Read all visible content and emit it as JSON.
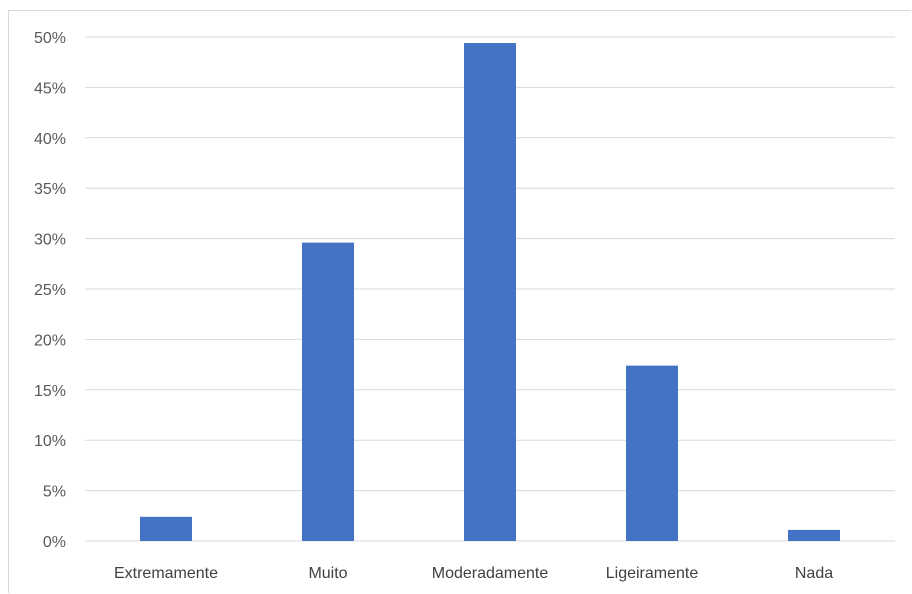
{
  "chart_data": {
    "type": "bar",
    "categories": [
      "Extremamente",
      "Muito",
      "Moderadamente",
      "Ligeiramente",
      "Nada"
    ],
    "values": [
      2.4,
      29.6,
      49.4,
      17.4,
      1.1
    ],
    "title": "",
    "xlabel": "",
    "ylabel": "",
    "ylim": [
      0,
      50
    ],
    "yticks": [
      0,
      5,
      10,
      15,
      20,
      25,
      30,
      35,
      40,
      45,
      50
    ],
    "ytick_suffix": "%",
    "grid": true,
    "legend": "none",
    "colors": {
      "bar": "#4472c4",
      "grid": "#d9d9d9",
      "axis_text": "#595959"
    }
  }
}
